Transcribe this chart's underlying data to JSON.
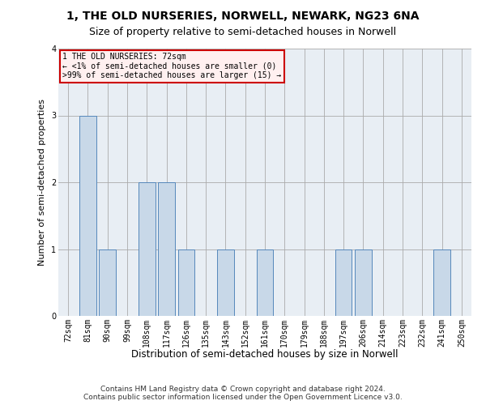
{
  "title": "1, THE OLD NURSERIES, NORWELL, NEWARK, NG23 6NA",
  "subtitle": "Size of property relative to semi-detached houses in Norwell",
  "xlabel": "Distribution of semi-detached houses by size in Norwell",
  "ylabel": "Number of semi-detached properties",
  "categories": [
    "72sqm",
    "81sqm",
    "90sqm",
    "99sqm",
    "108sqm",
    "117sqm",
    "126sqm",
    "135sqm",
    "143sqm",
    "152sqm",
    "161sqm",
    "170sqm",
    "179sqm",
    "188sqm",
    "197sqm",
    "206sqm",
    "214sqm",
    "223sqm",
    "232sqm",
    "241sqm",
    "250sqm"
  ],
  "values": [
    0,
    3,
    1,
    0,
    2,
    2,
    1,
    0,
    1,
    0,
    1,
    0,
    0,
    0,
    1,
    1,
    0,
    0,
    0,
    1,
    0
  ],
  "bar_color": "#c8d8e8",
  "bar_edge_color": "#5588bb",
  "annotation_box_text": "1 THE OLD NURSERIES: 72sqm\n← <1% of semi-detached houses are smaller (0)\n>99% of semi-detached houses are larger (15) →",
  "annotation_box_color": "#fff0f0",
  "annotation_box_edge": "#cc0000",
  "ylim": [
    0,
    4
  ],
  "yticks": [
    0,
    1,
    2,
    3,
    4
  ],
  "footer_line1": "Contains HM Land Registry data © Crown copyright and database right 2024.",
  "footer_line2": "Contains public sector information licensed under the Open Government Licence v3.0.",
  "bg_color": "#e8eef4",
  "title_fontsize": 10,
  "subtitle_fontsize": 9,
  "xlabel_fontsize": 8.5,
  "ylabel_fontsize": 8,
  "tick_fontsize": 7,
  "footer_fontsize": 6.5
}
